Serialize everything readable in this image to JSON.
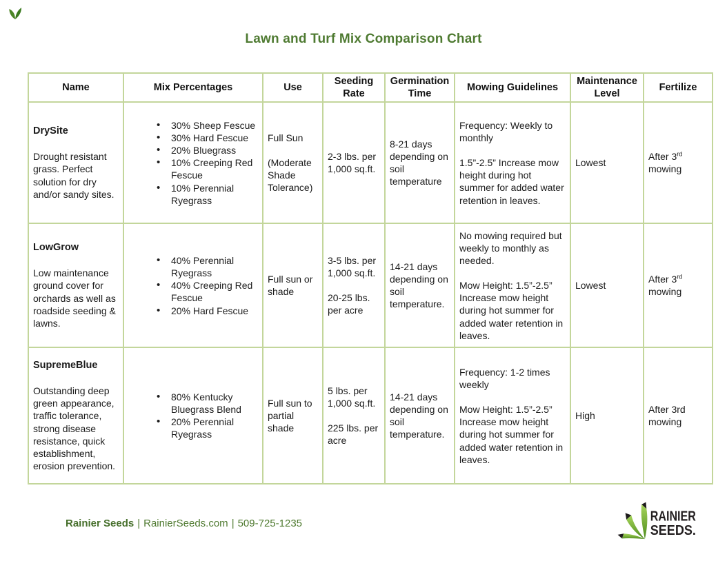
{
  "page": {
    "title": "Lawn and Turf Mix Comparison Chart"
  },
  "icons": {
    "corner_leaf": "sprout-leaves",
    "logo_grass": "three-grass-blades"
  },
  "colors": {
    "title_green": "#4e7a31",
    "border_green": "#c3d69b",
    "footer_green": "#4f7a30",
    "logo_green_light": "#a6d45a",
    "logo_green_dark": "#4e8c1e",
    "logo_black": "#231f20"
  },
  "table": {
    "headers": [
      "Name",
      "Mix Percentages",
      "Use",
      "Seeding Rate",
      "Germination Time",
      "Mowing Guidelines",
      "Maintenance Level",
      "Fertilize"
    ],
    "rows": [
      {
        "name": "DrySite",
        "description": "Drought resistant grass. Perfect solution for dry and/or sandy sites.",
        "mix": [
          "30% Sheep Fescue",
          "30% Hard Fescue",
          "20% Bluegrass",
          "10% Creeping Red Fescue",
          "10% Perennial Ryegrass"
        ],
        "use": [
          "Full Sun",
          "(Moderate Shade Tolerance)"
        ],
        "seeding_rate": [
          "2-3 lbs. per 1,000 sq.ft."
        ],
        "germination": [
          "8-21 days depending on soil temperature"
        ],
        "mowing": [
          "Frequency: Weekly to monthly",
          "1.5”-2.5” Increase mow height during hot summer for added water retention in leaves."
        ],
        "maintenance": "Lowest",
        "fertilize": {
          "prefix": "After 3",
          "sup": "rd",
          "suffix": " mowing"
        }
      },
      {
        "name": "LowGrow",
        "description": "Low maintenance ground cover for orchards as well as roadside seeding & lawns.",
        "mix": [
          "40% Perennial Ryegrass",
          "40% Creeping Red Fescue",
          "20% Hard Fescue"
        ],
        "use": [
          "Full sun or shade"
        ],
        "seeding_rate": [
          "3-5 lbs. per 1,000 sq.ft.",
          "20-25 lbs. per acre"
        ],
        "germination": [
          "14-21 days depending on soil temperature."
        ],
        "mowing": [
          "No mowing required but weekly to monthly as needed.",
          "Mow Height: 1.5”-2.5” Increase mow height during hot summer for added water retention in leaves."
        ],
        "maintenance": "Lowest",
        "fertilize": {
          "prefix": "After 3",
          "sup": "rd",
          "suffix": " mowing"
        }
      },
      {
        "name": "SupremeBlue",
        "description": "Outstanding deep green appearance, traffic tolerance, strong disease resistance, quick establishment, erosion prevention.",
        "mix": [
          "80% Kentucky Bluegrass Blend",
          "20% Perennial Ryegrass"
        ],
        "use": [
          "Full sun to partial shade"
        ],
        "seeding_rate": [
          "5 lbs. per 1,000 sq.ft.",
          "225 lbs. per acre"
        ],
        "germination": [
          "14-21 days depending on soil temperature."
        ],
        "mowing": [
          "Frequency: 1-2 times weekly",
          "Mow Height: 1.5”-2.5” Increase mow height during hot summer for added water retention in leaves."
        ],
        "maintenance": "High",
        "fertilize": {
          "prefix": "After 3rd",
          "sup": "",
          "suffix": " mowing"
        }
      }
    ]
  },
  "footer": {
    "brand": "Rainier Seeds",
    "separator": "|",
    "website": "RainierSeeds.com",
    "phone": "509-725-1235",
    "logo_line1": "RAINIER",
    "logo_line2": "SEEDS."
  }
}
